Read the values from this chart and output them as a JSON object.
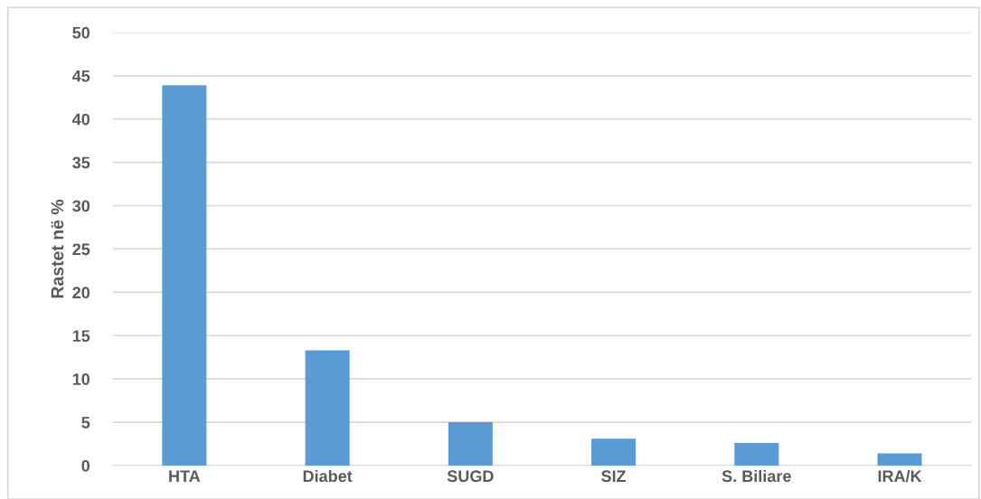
{
  "chart_data": {
    "type": "bar",
    "ylabel": "Rastet në %",
    "categories": [
      "HTA",
      "Diabet",
      "SUGD",
      "SIZ",
      "S. Biliare",
      "IRA/K"
    ],
    "values": [
      43.9,
      13.3,
      5.0,
      3.1,
      2.6,
      1.4
    ],
    "color": "#5b9bd5",
    "ylim": [
      0,
      50
    ],
    "yticks": [
      0,
      5,
      10,
      15,
      20,
      25,
      30,
      35,
      40,
      45,
      50
    ],
    "grid": "y",
    "legend": false
  }
}
